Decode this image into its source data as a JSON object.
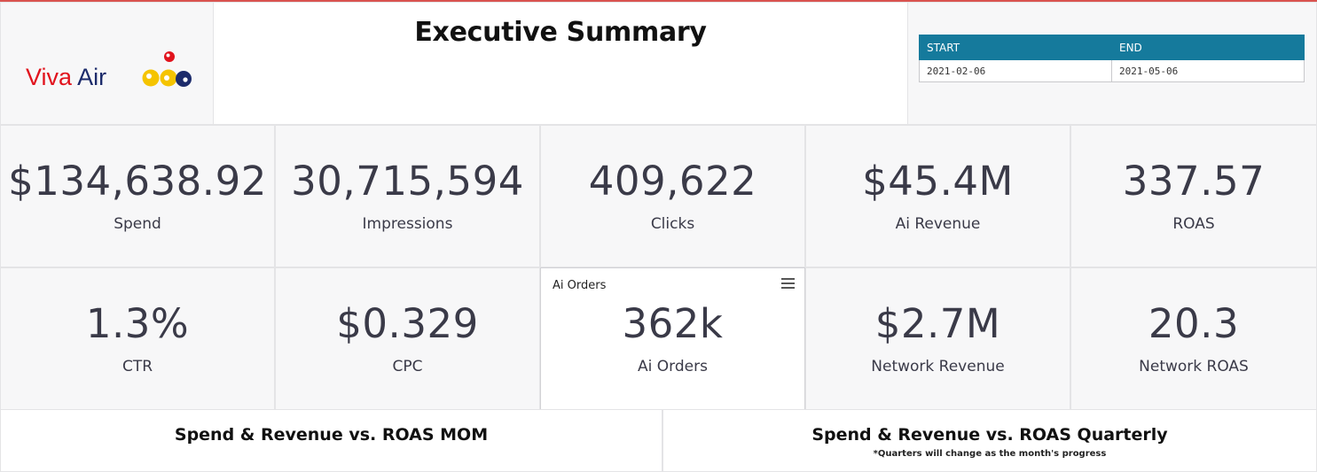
{
  "header": {
    "logo": {
      "text_primary": "Viva",
      "text_secondary": "Air",
      "colors": {
        "red": "#e1131d",
        "navy": "#1c2b6b",
        "yellow": "#f5c400"
      }
    },
    "title": "Executive Summary",
    "date_range": {
      "start_label": "START",
      "end_label": "END",
      "start_value": "2021-02-06",
      "end_value": "2021-05-06",
      "header_color": "#157a9c"
    }
  },
  "kpis_row1": [
    {
      "value": "$134,638.92",
      "label": "Spend"
    },
    {
      "value": "30,715,594",
      "label": "Impressions"
    },
    {
      "value": "409,622",
      "label": "Clicks"
    },
    {
      "value": "$45.4M",
      "label": "Ai Revenue"
    },
    {
      "value": "337.57",
      "label": "ROAS"
    }
  ],
  "kpis_row2": [
    {
      "value": "1.3%",
      "label": "CTR"
    },
    {
      "value": "$0.329",
      "label": "CPC"
    },
    {
      "value": "362k",
      "label": "Ai Orders",
      "corner_title": "Ai Orders",
      "menu_icon": "hamburger-menu-icon"
    },
    {
      "value": "$2.7M",
      "label": "Network Revenue"
    },
    {
      "value": "20.3",
      "label": "Network ROAS"
    }
  ],
  "sections": {
    "mom_title": "Spend & Revenue vs. ROAS MOM",
    "quarterly_title": "Spend & Revenue vs. ROAS Quarterly",
    "quarterly_note": "*Quarters will change as the month's progress"
  }
}
